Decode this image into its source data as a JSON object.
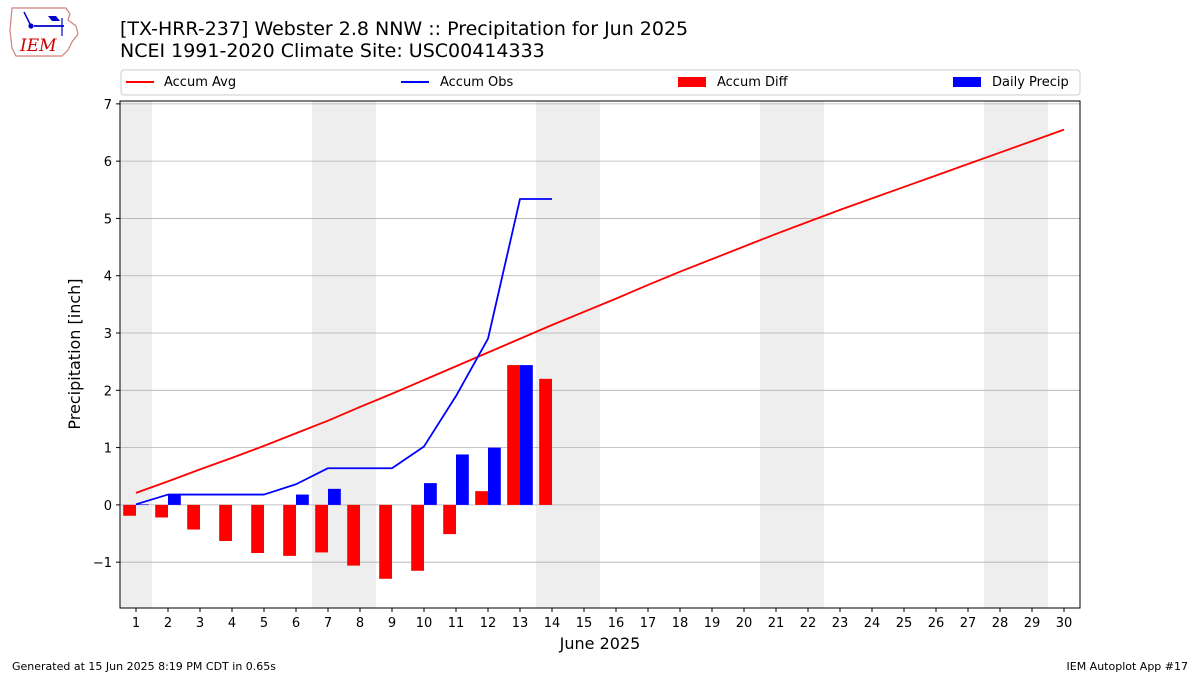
{
  "header": {
    "title_line1": "[TX-HRR-237] Webster 2.8 NNW :: Precipitation for Jun 2025",
    "title_line2": "NCEI 1991-2020 Climate Site: USC00414333",
    "logo_text": "IEM"
  },
  "footer": {
    "generated": "Generated at 15 Jun 2025 8:19 PM CDT in 0.65s",
    "app": "IEM Autoplot App #17"
  },
  "colors": {
    "avg": "#ff0000",
    "obs": "#0000ff",
    "diff": "#ff0000",
    "daily": "#0000ff",
    "weekend_band": "#eeeeee",
    "grid": "#b0b0b0"
  },
  "chart_data": {
    "type": "bar",
    "title": "[TX-HRR-237] Webster 2.8 NNW :: Precipitation for Jun 2025",
    "subtitle": "NCEI 1991-2020 Climate Site: USC00414333",
    "xlabel": "June 2025",
    "ylabel": "Precipitation [inch]",
    "xlim": [
      0.5,
      30.5
    ],
    "ylim": [
      -1.8,
      7.05
    ],
    "yticks": [
      -1,
      0,
      1,
      2,
      3,
      4,
      5,
      6,
      7
    ],
    "ytick_labels": [
      "−1",
      "0",
      "1",
      "2",
      "3",
      "4",
      "5",
      "6",
      "7"
    ],
    "x": [
      1,
      2,
      3,
      4,
      5,
      6,
      7,
      8,
      9,
      10,
      11,
      12,
      13,
      14,
      15,
      16,
      17,
      18,
      19,
      20,
      21,
      22,
      23,
      24,
      25,
      26,
      27,
      28,
      29,
      30
    ],
    "xtick_labels": [
      "1",
      "2",
      "3",
      "4",
      "5",
      "6",
      "7",
      "8",
      "9",
      "10",
      "11",
      "12",
      "13",
      "14",
      "15",
      "16",
      "17",
      "18",
      "19",
      "20",
      "21",
      "22",
      "23",
      "24",
      "25",
      "26",
      "27",
      "28",
      "29",
      "30"
    ],
    "grid": "y",
    "legend_placement": "top",
    "weekend_bands": [
      [
        1,
        1
      ],
      [
        7,
        8
      ],
      [
        14,
        15
      ],
      [
        21,
        22
      ],
      [
        28,
        29
      ]
    ],
    "series": [
      {
        "name": "Accum Avg",
        "kind": "line",
        "x": [
          1,
          2,
          3,
          4,
          5,
          6,
          7,
          8,
          9,
          10,
          11,
          12,
          13,
          14,
          15,
          16,
          17,
          18,
          19,
          20,
          21,
          22,
          23,
          24,
          25,
          26,
          27,
          28,
          29,
          30
        ],
        "values": [
          0.21,
          0.41,
          0.62,
          0.82,
          1.03,
          1.25,
          1.47,
          1.71,
          1.94,
          2.18,
          2.42,
          2.66,
          2.9,
          3.14,
          3.37,
          3.6,
          3.84,
          4.07,
          4.29,
          4.51,
          4.73,
          4.94,
          5.15,
          5.35,
          5.55,
          5.75,
          5.95,
          6.15,
          6.35,
          6.55
        ]
      },
      {
        "name": "Accum Obs",
        "kind": "line",
        "x": [
          1,
          2,
          3,
          4,
          5,
          6,
          7,
          8,
          9,
          10,
          11,
          12,
          13,
          14
        ],
        "values": [
          0.01,
          0.18,
          0.18,
          0.18,
          0.18,
          0.36,
          0.64,
          0.64,
          0.64,
          1.02,
          1.9,
          2.9,
          5.34,
          5.34
        ]
      },
      {
        "name": "Accum Diff",
        "kind": "bar",
        "x": [
          1,
          2,
          3,
          4,
          5,
          6,
          7,
          8,
          9,
          10,
          11,
          12,
          13,
          14
        ],
        "values": [
          -0.19,
          -0.22,
          -0.43,
          -0.63,
          -0.84,
          -0.89,
          -0.83,
          -1.06,
          -1.29,
          -1.15,
          -0.51,
          0.24,
          2.44,
          2.2
        ]
      },
      {
        "name": "Daily Precip",
        "kind": "bar",
        "x": [
          1,
          2,
          3,
          4,
          5,
          6,
          7,
          8,
          9,
          10,
          11,
          12,
          13,
          14
        ],
        "values": [
          0.01,
          0.17,
          0,
          0,
          0,
          0.18,
          0.28,
          0,
          0,
          0.38,
          0.88,
          1.0,
          2.44,
          0
        ]
      }
    ]
  }
}
